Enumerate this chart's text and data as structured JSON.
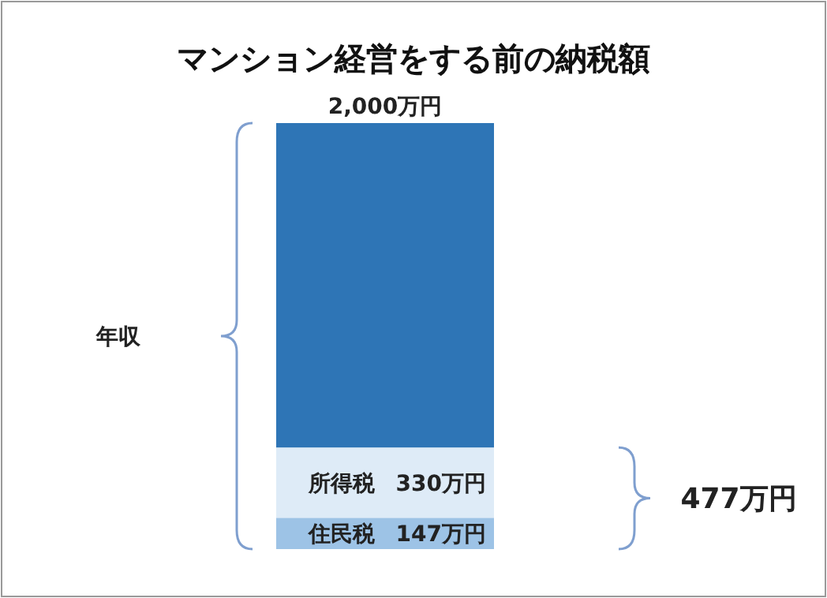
{
  "chart_data": {
    "type": "bar",
    "title": "マンション経営をする前の納税額",
    "categories": [
      null
    ],
    "stacked": true,
    "totals": [
      "2,000万円"
    ],
    "series": [
      {
        "name": "住民税",
        "color": "#9dc3e6",
        "values": [
          147
        ],
        "value_labels": [
          "147万円"
        ]
      },
      {
        "name": "所得税",
        "color": "#deebf7",
        "values": [
          330
        ],
        "value_labels": [
          "330万円"
        ]
      },
      {
        "color": "#2e75b6",
        "values": [
          1523
        ]
      }
    ],
    "annotations": [
      "年収",
      "477万円"
    ]
  }
}
